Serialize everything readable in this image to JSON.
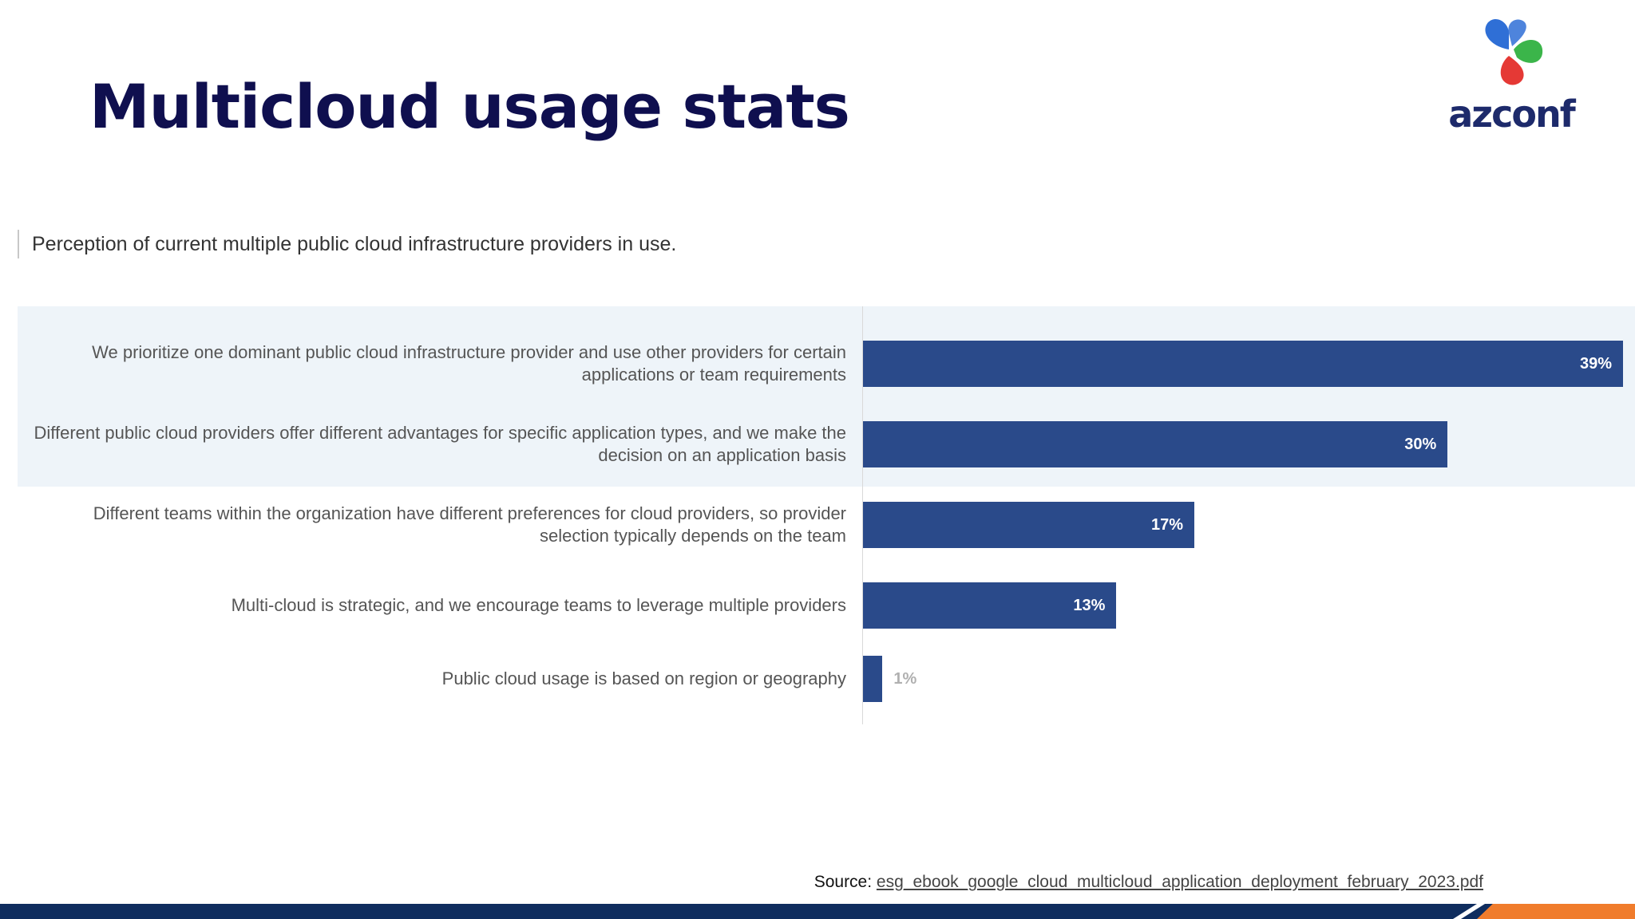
{
  "slide": {
    "title": "Multicloud usage stats",
    "logo_text": "azconf",
    "logo_icon": "azconf-flower-icon"
  },
  "source": {
    "prefix": "Source: ",
    "link_text": "esg_ebook_google_cloud_multicloud_application_deployment_february_2023.pdf"
  },
  "colors": {
    "bar": "#2a4a8a",
    "highlight_band": "#eef4f9",
    "footer": "#0f2d5e",
    "footer_accent": "#f07c2c",
    "title": "#0f0f4f"
  },
  "chart_data": {
    "type": "bar",
    "orientation": "horizontal",
    "title": "Perception of current multiple public cloud infrastructure providers in use.",
    "categories": [
      "We prioritize one dominant public cloud infrastructure provider and use other providers for certain applications or team requirements",
      "Different public cloud providers offer different advantages for specific application types, and we make the decision on an application basis",
      "Different teams within the organization have different preferences for cloud providers, so provider selection typically depends on the team",
      "Multi-cloud is strategic, and we encourage teams to leverage multiple providers",
      "Public cloud usage is based on region or geography"
    ],
    "values": [
      39,
      30,
      17,
      13,
      1
    ],
    "value_labels": [
      "39%",
      "30%",
      "17%",
      "13%",
      "1%"
    ],
    "xlim": [
      0,
      39
    ],
    "grid": false,
    "legend": "none",
    "highlighted_rows": [
      0,
      1
    ]
  }
}
